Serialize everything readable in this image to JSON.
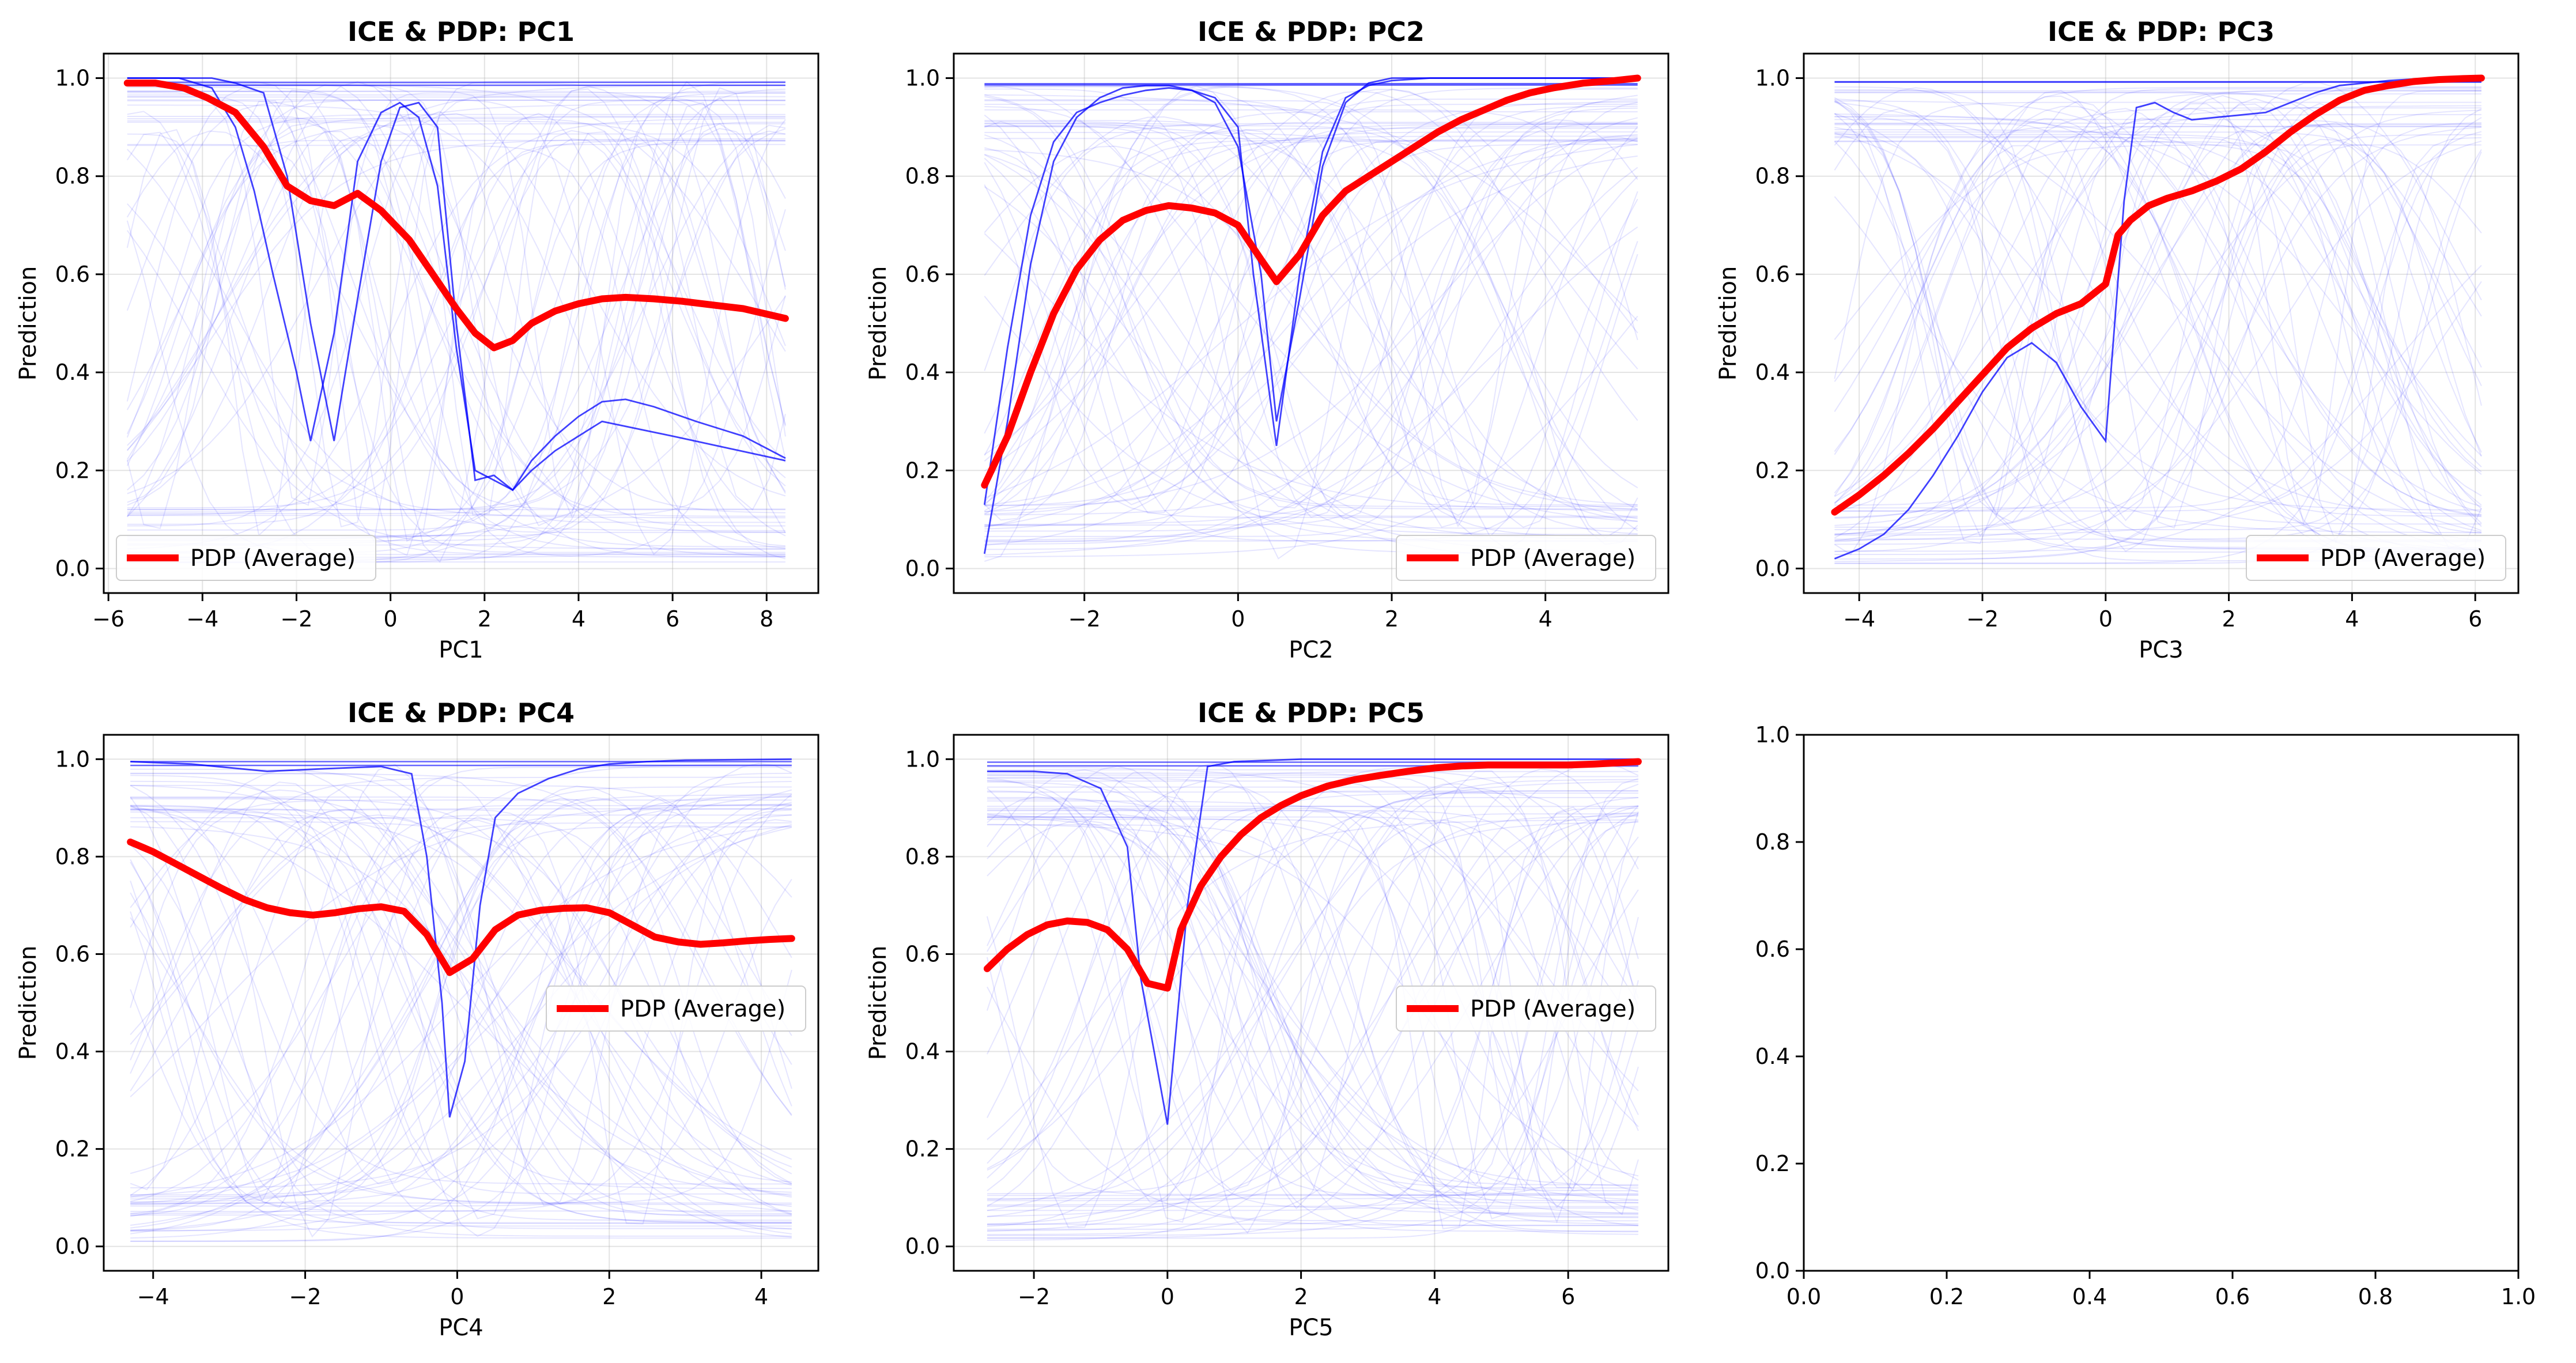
{
  "colors": {
    "pdp": "#ff0000",
    "ice": "#0000ff",
    "grid": "#b0b0b0"
  },
  "chart_data": [
    {
      "type": "line",
      "title": "ICE & PDP: PC1",
      "xlabel": "PC1",
      "ylabel": "Prediction",
      "xlim": [
        -6.1,
        9.1
      ],
      "ylim": [
        -0.05,
        1.05
      ],
      "xticks": [
        -6,
        -4,
        -2,
        0,
        2,
        4,
        6,
        8
      ],
      "yticks": [
        0.0,
        0.2,
        0.4,
        0.6,
        0.8,
        1.0
      ],
      "grid": true,
      "legend": {
        "label": "PDP (Average)",
        "placement": "lower-left"
      },
      "series": [
        {
          "name": "PDP (Average)",
          "role": "pdp",
          "x": [
            -5.6,
            -5.0,
            -4.4,
            -3.9,
            -3.3,
            -2.7,
            -2.2,
            -1.7,
            -1.2,
            -0.7,
            -0.2,
            0.4,
            0.9,
            1.4,
            1.8,
            2.2,
            2.6,
            3.0,
            3.5,
            4.0,
            4.5,
            5.0,
            5.6,
            6.2,
            6.8,
            7.5,
            8.4
          ],
          "y": [
            0.99,
            0.99,
            0.98,
            0.96,
            0.93,
            0.86,
            0.78,
            0.75,
            0.74,
            0.765,
            0.73,
            0.67,
            0.6,
            0.53,
            0.48,
            0.45,
            0.465,
            0.5,
            0.525,
            0.54,
            0.55,
            0.553,
            0.55,
            0.545,
            0.538,
            0.53,
            0.51
          ]
        },
        {
          "name": "",
          "role": "ice-strong",
          "x": [
            -5.6,
            -4.5,
            -3.8,
            -3.3,
            -2.7,
            -2.2,
            -1.7,
            -1.2,
            -0.7,
            -0.2,
            0.2,
            0.6,
            1.0,
            1.4,
            1.8,
            2.2,
            2.6,
            3.0,
            3.5,
            4.0,
            4.5,
            5.0,
            5.6,
            6.5,
            7.5,
            8.4
          ],
          "y": [
            1.0,
            1.0,
            1.0,
            0.99,
            0.97,
            0.8,
            0.5,
            0.26,
            0.55,
            0.83,
            0.94,
            0.95,
            0.9,
            0.5,
            0.18,
            0.19,
            0.16,
            0.22,
            0.27,
            0.31,
            0.34,
            0.345,
            0.33,
            0.3,
            0.27,
            0.225
          ]
        },
        {
          "name": "",
          "role": "ice-strong",
          "x": [
            -5.6,
            -4.5,
            -3.8,
            -3.3,
            -2.9,
            -2.5,
            -2.0,
            -1.7,
            -1.2,
            -0.7,
            -0.2,
            0.2,
            0.6,
            1.0,
            1.4,
            1.8,
            2.2,
            2.6,
            3.0,
            3.5,
            4.5,
            6.0,
            8.4
          ],
          "y": [
            1.0,
            1.0,
            0.98,
            0.9,
            0.77,
            0.6,
            0.4,
            0.26,
            0.48,
            0.83,
            0.93,
            0.95,
            0.92,
            0.78,
            0.45,
            0.2,
            0.18,
            0.16,
            0.2,
            0.24,
            0.3,
            0.27,
            0.22
          ]
        }
      ]
    },
    {
      "type": "line",
      "title": "ICE & PDP: PC2",
      "xlabel": "PC2",
      "ylabel": "Prediction",
      "xlim": [
        -3.7,
        5.6
      ],
      "ylim": [
        -0.05,
        1.05
      ],
      "xticks": [
        -2,
        0,
        2,
        4
      ],
      "yticks": [
        0.0,
        0.2,
        0.4,
        0.6,
        0.8,
        1.0
      ],
      "grid": true,
      "legend": {
        "label": "PDP (Average)",
        "placement": "lower-right"
      },
      "series": [
        {
          "name": "PDP (Average)",
          "role": "pdp",
          "x": [
            -3.3,
            -3.0,
            -2.7,
            -2.4,
            -2.1,
            -1.8,
            -1.5,
            -1.2,
            -0.9,
            -0.6,
            -0.3,
            0.0,
            0.3,
            0.5,
            0.8,
            1.1,
            1.4,
            1.7,
            2.0,
            2.3,
            2.6,
            2.9,
            3.2,
            3.5,
            3.8,
            4.1,
            4.5,
            4.9,
            5.2
          ],
          "y": [
            0.17,
            0.27,
            0.4,
            0.52,
            0.61,
            0.67,
            0.71,
            0.73,
            0.74,
            0.735,
            0.725,
            0.7,
            0.63,
            0.585,
            0.64,
            0.72,
            0.77,
            0.8,
            0.83,
            0.86,
            0.89,
            0.915,
            0.935,
            0.955,
            0.97,
            0.98,
            0.99,
            0.995,
            1.0
          ]
        },
        {
          "name": "",
          "role": "ice-strong",
          "x": [
            -3.3,
            -3.0,
            -2.7,
            -2.4,
            -2.1,
            -1.8,
            -1.5,
            -1.2,
            -0.9,
            -0.6,
            -0.3,
            0.0,
            0.2,
            0.5,
            0.8,
            1.1,
            1.4,
            1.7,
            2.0,
            2.5,
            3.0,
            4.0,
            5.2
          ],
          "y": [
            0.03,
            0.3,
            0.62,
            0.83,
            0.92,
            0.96,
            0.98,
            0.985,
            0.985,
            0.975,
            0.96,
            0.9,
            0.6,
            0.25,
            0.6,
            0.85,
            0.96,
            0.985,
            0.995,
            1.0,
            1.0,
            1.0,
            1.0
          ]
        },
        {
          "name": "",
          "role": "ice-strong",
          "x": [
            -3.3,
            -3.0,
            -2.7,
            -2.4,
            -2.1,
            -1.8,
            -1.5,
            -1.2,
            -0.9,
            -0.6,
            -0.3,
            0.0,
            0.3,
            0.5,
            0.8,
            1.1,
            1.4,
            1.7,
            2.0,
            3.0,
            5.2
          ],
          "y": [
            0.13,
            0.45,
            0.72,
            0.87,
            0.93,
            0.95,
            0.965,
            0.975,
            0.98,
            0.975,
            0.95,
            0.86,
            0.6,
            0.3,
            0.55,
            0.82,
            0.95,
            0.99,
            1.0,
            1.0,
            1.0
          ]
        }
      ]
    },
    {
      "type": "line",
      "title": "ICE & PDP: PC3",
      "xlabel": "PC3",
      "ylabel": "Prediction",
      "xlim": [
        -4.9,
        6.7
      ],
      "ylim": [
        -0.05,
        1.05
      ],
      "xticks": [
        -4,
        -2,
        0,
        2,
        4,
        6
      ],
      "yticks": [
        0.0,
        0.2,
        0.4,
        0.6,
        0.8,
        1.0
      ],
      "grid": true,
      "legend": {
        "label": "PDP (Average)",
        "placement": "lower-right"
      },
      "series": [
        {
          "name": "PDP (Average)",
          "role": "pdp",
          "x": [
            -4.4,
            -4.0,
            -3.6,
            -3.2,
            -2.8,
            -2.4,
            -2.0,
            -1.6,
            -1.2,
            -0.8,
            -0.4,
            0.0,
            0.2,
            0.4,
            0.7,
            1.0,
            1.4,
            1.8,
            2.2,
            2.6,
            3.0,
            3.4,
            3.8,
            4.2,
            4.6,
            5.0,
            5.4,
            5.8,
            6.1
          ],
          "y": [
            0.115,
            0.15,
            0.19,
            0.235,
            0.285,
            0.34,
            0.395,
            0.45,
            0.49,
            0.52,
            0.54,
            0.58,
            0.68,
            0.71,
            0.74,
            0.755,
            0.77,
            0.79,
            0.815,
            0.85,
            0.89,
            0.925,
            0.955,
            0.975,
            0.985,
            0.993,
            0.997,
            0.999,
            1.0
          ]
        },
        {
          "name": "",
          "role": "ice-strong",
          "x": [
            -4.4,
            -4.0,
            -3.6,
            -3.2,
            -2.8,
            -2.4,
            -2.0,
            -1.6,
            -1.2,
            -0.8,
            -0.4,
            0.0,
            0.3,
            0.5,
            0.8,
            1.1,
            1.4,
            1.8,
            2.2,
            2.6,
            3.0,
            3.4,
            3.8,
            4.2,
            4.6,
            5.0,
            5.5,
            6.1
          ],
          "y": [
            0.02,
            0.04,
            0.07,
            0.12,
            0.19,
            0.27,
            0.36,
            0.43,
            0.46,
            0.42,
            0.33,
            0.26,
            0.75,
            0.94,
            0.95,
            0.93,
            0.915,
            0.92,
            0.925,
            0.93,
            0.95,
            0.97,
            0.985,
            0.99,
            0.995,
            0.998,
            1.0,
            1.0
          ]
        }
      ]
    },
    {
      "type": "line",
      "title": "ICE & PDP: PC4",
      "xlabel": "PC4",
      "ylabel": "Prediction",
      "xlim": [
        -4.65,
        4.75
      ],
      "ylim": [
        -0.05,
        1.05
      ],
      "xticks": [
        -4,
        -2,
        0,
        2,
        4
      ],
      "yticks": [
        0.0,
        0.2,
        0.4,
        0.6,
        0.8,
        1.0
      ],
      "grid": true,
      "legend": {
        "label": "PDP (Average)",
        "placement": "center-right"
      },
      "series": [
        {
          "name": "PDP (Average)",
          "role": "pdp",
          "x": [
            -4.3,
            -4.0,
            -3.7,
            -3.4,
            -3.1,
            -2.8,
            -2.5,
            -2.2,
            -1.9,
            -1.6,
            -1.3,
            -1.0,
            -0.7,
            -0.4,
            -0.1,
            0.2,
            0.5,
            0.8,
            1.1,
            1.4,
            1.7,
            2.0,
            2.3,
            2.6,
            2.9,
            3.2,
            3.5,
            3.8,
            4.1,
            4.4
          ],
          "y": [
            0.83,
            0.81,
            0.785,
            0.76,
            0.735,
            0.712,
            0.695,
            0.685,
            0.68,
            0.685,
            0.693,
            0.697,
            0.688,
            0.64,
            0.562,
            0.59,
            0.65,
            0.68,
            0.69,
            0.694,
            0.695,
            0.685,
            0.66,
            0.635,
            0.625,
            0.62,
            0.623,
            0.627,
            0.63,
            0.632
          ]
        },
        {
          "name": "",
          "role": "ice-strong",
          "x": [
            -4.3,
            -3.5,
            -2.5,
            -1.8,
            -1.0,
            -0.6,
            -0.4,
            -0.2,
            -0.1,
            0.1,
            0.3,
            0.5,
            0.8,
            1.2,
            1.6,
            2.0,
            2.5,
            3.0,
            4.4
          ],
          "y": [
            0.995,
            0.99,
            0.975,
            0.98,
            0.985,
            0.97,
            0.8,
            0.5,
            0.265,
            0.38,
            0.7,
            0.88,
            0.93,
            0.96,
            0.98,
            0.99,
            0.995,
            0.998,
            1.0
          ]
        }
      ]
    },
    {
      "type": "line",
      "title": "ICE & PDP: PC5",
      "xlabel": "PC5",
      "ylabel": "Prediction",
      "xlim": [
        -3.2,
        7.5
      ],
      "ylim": [
        -0.05,
        1.05
      ],
      "xticks": [
        -2,
        0,
        2,
        4,
        6
      ],
      "yticks": [
        0.0,
        0.2,
        0.4,
        0.6,
        0.8,
        1.0
      ],
      "grid": true,
      "legend": {
        "label": "PDP (Average)",
        "placement": "center-right"
      },
      "series": [
        {
          "name": "PDP (Average)",
          "role": "pdp",
          "x": [
            -2.7,
            -2.4,
            -2.1,
            -1.8,
            -1.5,
            -1.2,
            -0.9,
            -0.6,
            -0.3,
            0.0,
            0.2,
            0.5,
            0.8,
            1.1,
            1.4,
            1.7,
            2.0,
            2.4,
            2.8,
            3.2,
            3.6,
            4.0,
            4.4,
            4.8,
            5.2,
            5.6,
            6.0,
            6.4,
            6.8,
            7.05
          ],
          "y": [
            0.57,
            0.61,
            0.64,
            0.66,
            0.668,
            0.665,
            0.65,
            0.61,
            0.54,
            0.53,
            0.65,
            0.74,
            0.8,
            0.845,
            0.88,
            0.905,
            0.925,
            0.945,
            0.958,
            0.967,
            0.975,
            0.982,
            0.986,
            0.988,
            0.988,
            0.988,
            0.988,
            0.99,
            0.993,
            0.995
          ]
        },
        {
          "name": "",
          "role": "ice-strong",
          "x": [
            -2.7,
            -2.0,
            -1.5,
            -1.0,
            -0.6,
            -0.4,
            -0.2,
            0.0,
            0.3,
            0.6,
            1.0,
            2.0,
            4.0,
            7.05
          ],
          "y": [
            0.975,
            0.975,
            0.97,
            0.94,
            0.82,
            0.55,
            0.4,
            0.25,
            0.7,
            0.985,
            0.995,
            1.0,
            1.0,
            1.0
          ]
        }
      ]
    },
    {
      "type": "line",
      "title": "",
      "xlabel": "",
      "ylabel": "",
      "xlim": [
        0.0,
        1.0
      ],
      "ylim": [
        0.0,
        1.0
      ],
      "xticks": [
        0.0,
        0.2,
        0.4,
        0.6,
        0.8,
        1.0
      ],
      "yticks": [
        0.0,
        0.2,
        0.4,
        0.6,
        0.8,
        1.0
      ],
      "grid": false,
      "series": []
    }
  ]
}
